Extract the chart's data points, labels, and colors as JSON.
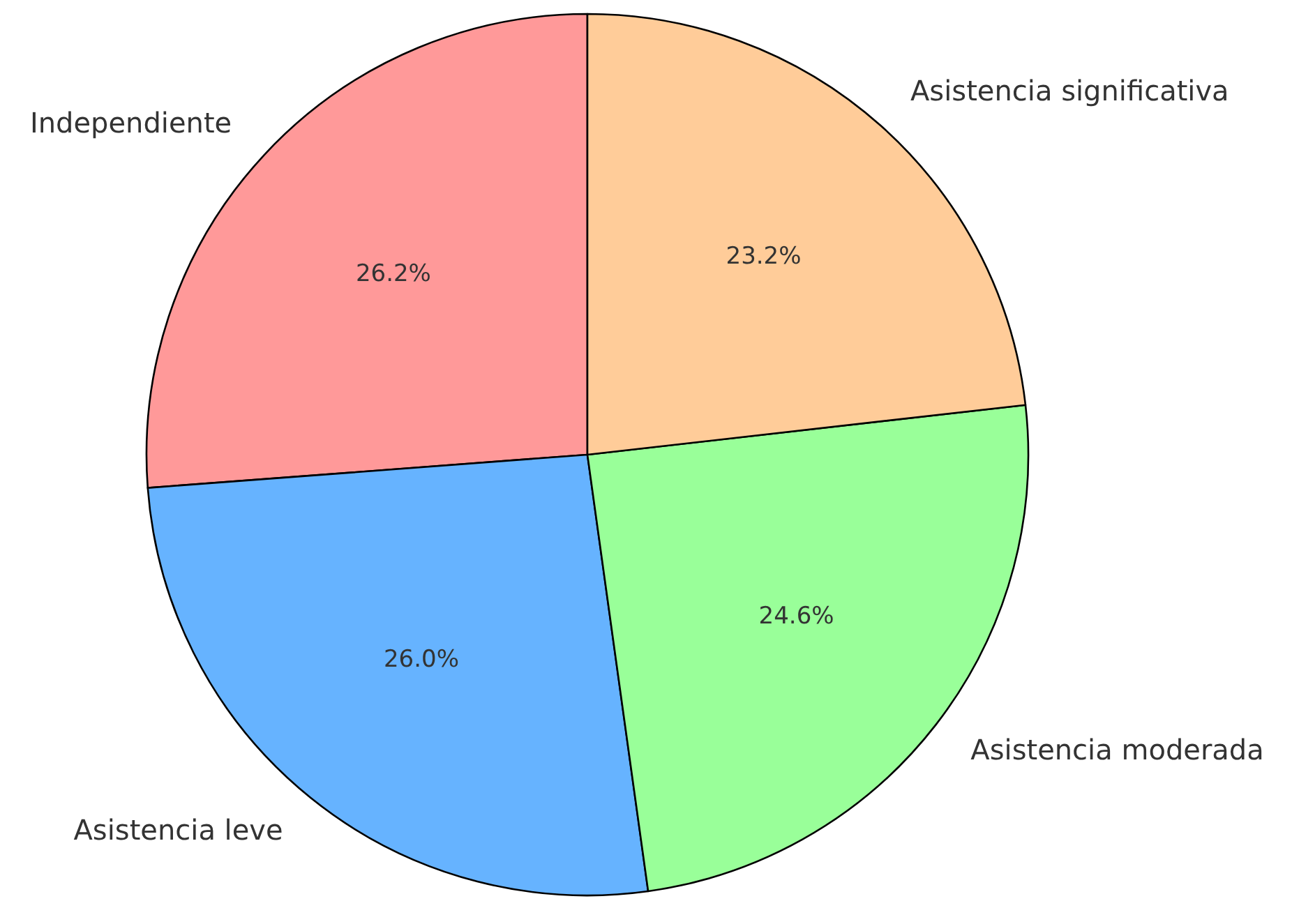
{
  "chart_data": {
    "type": "pie",
    "categories": [
      "Independiente",
      "Asistencia leve",
      "Asistencia moderada",
      "Asistencia significativa"
    ],
    "values": [
      26.2,
      26.0,
      24.6,
      23.2
    ],
    "colors": [
      "#ff9999",
      "#66b3ff",
      "#99ff99",
      "#ffcc99"
    ],
    "value_labels": [
      "26.2%",
      "26.0%",
      "24.6%",
      "23.2%"
    ]
  }
}
